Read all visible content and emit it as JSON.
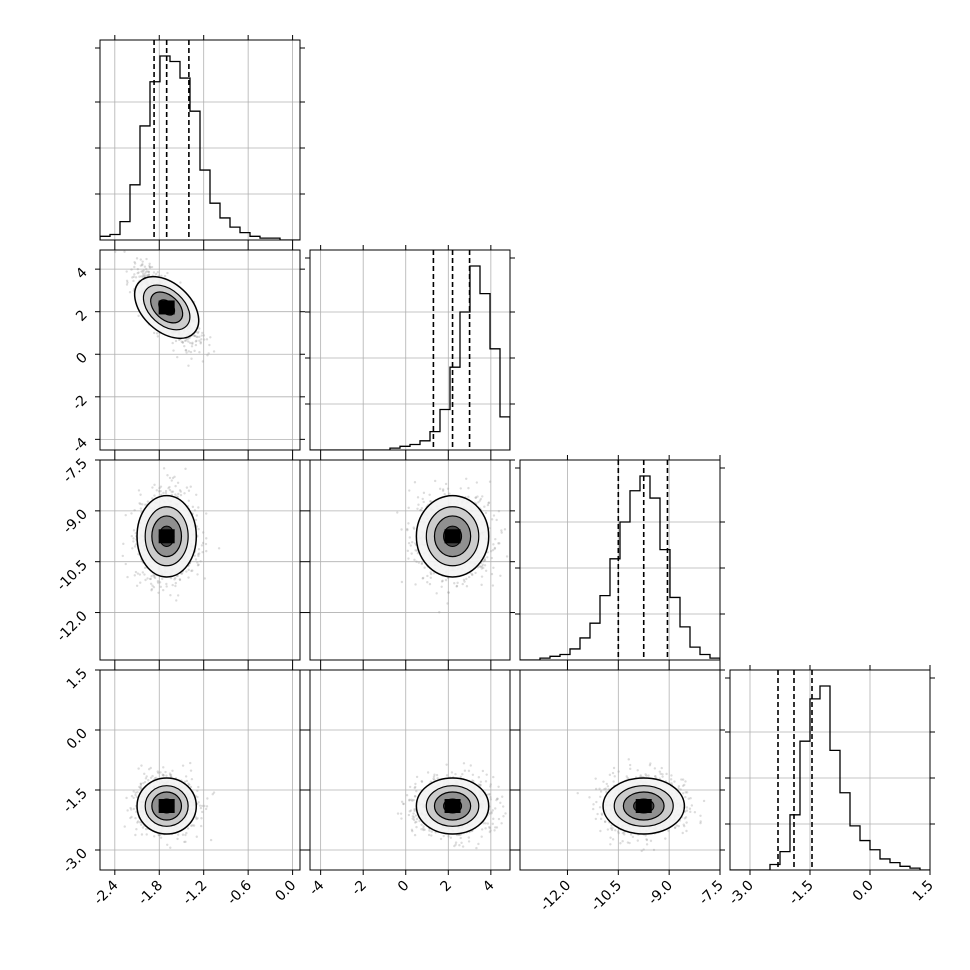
{
  "chart_data": {
    "type": "corner",
    "grid": true,
    "parameters": [
      {
        "range": [
          -2.6,
          0.1
        ],
        "ticks": [
          "-2.4",
          "-1.8",
          "-1.2",
          "-0.6",
          "0.0"
        ],
        "tick_values": [
          -2.4,
          -1.8,
          -1.2,
          -0.6,
          0.0
        ],
        "quantiles": [
          -1.87,
          -1.7,
          -1.4
        ],
        "mean": -1.7,
        "sd": 0.2
      },
      {
        "range": [
          -4.5,
          4.9
        ],
        "ticks": [
          "-4",
          "-2",
          "0",
          "2",
          "4"
        ],
        "tick_values": [
          -4,
          -2,
          0,
          2,
          4
        ],
        "quantiles": [
          1.3,
          2.2,
          3.0
        ],
        "mean": 2.2,
        "sd": 0.85
      },
      {
        "range": [
          -13.4,
          -7.5
        ],
        "ticks": [
          "-12.0",
          "-10.5",
          "-9.0",
          "-7.5"
        ],
        "tick_values": [
          -12.0,
          -10.5,
          -9.0,
          -7.5
        ],
        "quantiles": [
          -10.5,
          -9.75,
          -9.05
        ],
        "mean": -9.75,
        "sd": 0.6
      },
      {
        "range": [
          -3.5,
          1.5
        ],
        "ticks": [
          "-3.0",
          "-1.5",
          "0.0",
          "1.5"
        ],
        "tick_values": [
          -3.0,
          -1.5,
          0.0,
          1.5
        ],
        "quantiles": [
          -2.3,
          -1.9,
          -1.45
        ],
        "mean": -1.9,
        "sd": 0.35
      }
    ],
    "correlations": [
      [
        1,
        -0.75,
        0.0,
        0.0
      ],
      [
        -0.75,
        1,
        0.0,
        0.0
      ],
      [
        0.0,
        0.0,
        1,
        0.0
      ],
      [
        0.0,
        0.0,
        0.0,
        1
      ]
    ],
    "histograms": [
      [
        2,
        3,
        10,
        30,
        62,
        86,
        100,
        97,
        88,
        70,
        38,
        20,
        12,
        7,
        4,
        2,
        1,
        1,
        0,
        0
      ],
      [
        0,
        0,
        0,
        0,
        0,
        0,
        0,
        0,
        1,
        2,
        3,
        5,
        10,
        22,
        45,
        75,
        100,
        85,
        55,
        18
      ],
      [
        0,
        0,
        1,
        2,
        3,
        6,
        12,
        20,
        35,
        55,
        75,
        92,
        100,
        88,
        60,
        34,
        18,
        7,
        3,
        1
      ],
      [
        0,
        0,
        0,
        0,
        3,
        10,
        30,
        70,
        93,
        100,
        65,
        42,
        24,
        16,
        11,
        6,
        4,
        2,
        1,
        0
      ]
    ],
    "colors": {
      "line": "#000000",
      "points": "#9a9a9a",
      "grid": "#b0b0b0"
    }
  }
}
